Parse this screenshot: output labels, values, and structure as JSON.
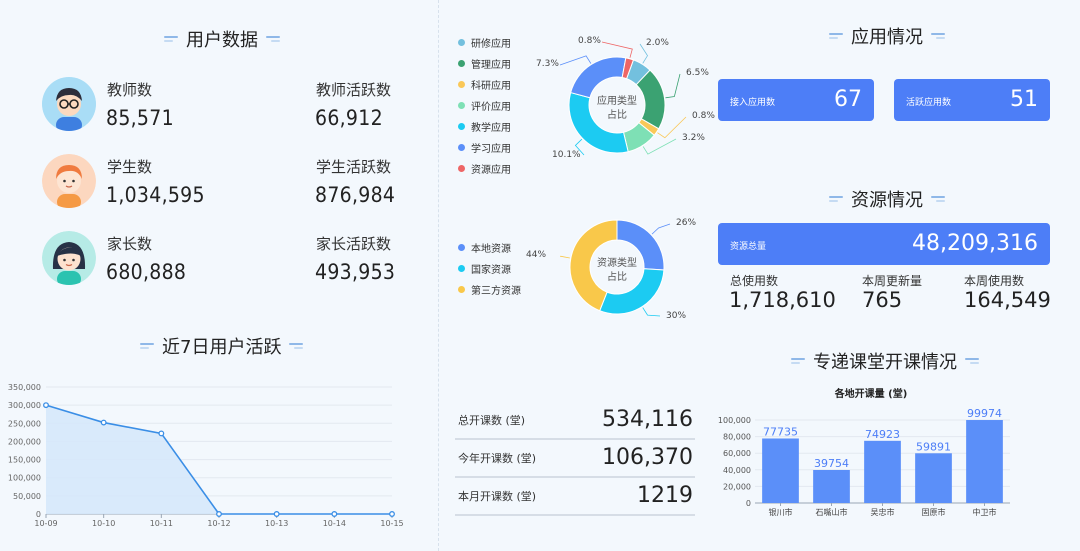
{
  "user_data": {
    "title": "用户数据",
    "rows": [
      {
        "label": "教师数",
        "value": "85,571",
        "active_label": "教师活跃数",
        "active_value": "66,912"
      },
      {
        "label": "学生数",
        "value": "1,034,595",
        "active_label": "学生活跃数",
        "active_value": "876,984"
      },
      {
        "label": "家长数",
        "value": "680,888",
        "active_label": "家长活跃数",
        "active_value": "493,953"
      }
    ]
  },
  "activity": {
    "title": "近7日用户活跃",
    "chart_data": {
      "type": "area",
      "x": [
        "10-09",
        "10-10",
        "10-11",
        "10-12",
        "10-13",
        "10-14",
        "10-15"
      ],
      "values": [
        300000,
        252000,
        222000,
        0,
        0,
        0,
        0
      ],
      "ylim": [
        0,
        350000
      ],
      "yticks": [
        "0",
        "50,000",
        "100,000",
        "150,000",
        "200,000",
        "250,000",
        "300,000",
        "350,000"
      ],
      "color": "#3a8ee6"
    }
  },
  "app_types": {
    "center_label_1": "应用类型",
    "center_label_2": "占比",
    "chart_data": {
      "type": "pie",
      "categories": [
        "研修应用",
        "管理应用",
        "科研应用",
        "评价应用",
        "教学应用",
        "学习应用",
        "资源应用"
      ],
      "values": [
        2.0,
        6.5,
        0.8,
        3.2,
        10.1,
        7.3,
        0.8
      ],
      "labels": [
        "2.0%",
        "6.5%",
        "0.8%",
        "3.2%",
        "10.1%",
        "7.3%",
        "0.8%"
      ],
      "colors": [
        "#73c0de",
        "#3ba272",
        "#fac858",
        "#7ee0b5",
        "#1ccbf2",
        "#5b8ff9",
        "#ee6666"
      ]
    }
  },
  "resource_types": {
    "center_label_1": "资源类型",
    "center_label_2": "占比",
    "chart_data": {
      "type": "pie",
      "categories": [
        "本地资源",
        "国家资源",
        "第三方资源"
      ],
      "values": [
        26,
        30,
        44
      ],
      "labels": [
        "26%",
        "30%",
        "44%"
      ],
      "colors": [
        "#5b8ff9",
        "#1ccbf2",
        "#f9c84a"
      ]
    }
  },
  "app_status": {
    "title": "应用情况",
    "connected_label": "接入应用数",
    "connected_value": "67",
    "active_label": "活跃应用数",
    "active_value": "51"
  },
  "resource_status": {
    "title": "资源情况",
    "total_label": "资源总量",
    "total_value": "48,209,316",
    "stats": [
      {
        "label": "总使用数",
        "value": "1,718,610"
      },
      {
        "label": "本周更新量",
        "value": "765"
      },
      {
        "label": "本周使用数",
        "value": "164,549"
      }
    ]
  },
  "courses": {
    "rows": [
      {
        "label": "总开课数 (堂)",
        "value": "534,116"
      },
      {
        "label": "今年开课数 (堂)",
        "value": "106,370"
      },
      {
        "label": "本月开课数 (堂)",
        "value": "1219"
      }
    ]
  },
  "classroom": {
    "title": "专递课堂开课情况",
    "chart_data": {
      "type": "bar",
      "title": "各地开课量 (堂)",
      "categories": [
        "银川市",
        "石嘴山市",
        "吴忠市",
        "固原市",
        "中卫市"
      ],
      "values": [
        77735,
        39754,
        74923,
        59891,
        99974
      ],
      "ylim": [
        0,
        100000
      ],
      "yticks": [
        "0",
        "20,000",
        "40,000",
        "60,000",
        "80,000",
        "100,000"
      ],
      "color": "#5b8ff9",
      "label_color": "#4d7ef7"
    }
  }
}
